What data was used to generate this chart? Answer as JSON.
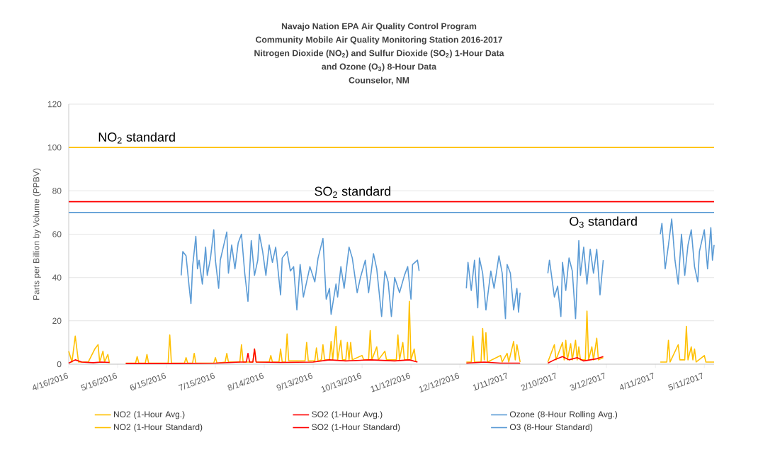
{
  "chart_data": {
    "type": "line",
    "title": "Navajo Nation EPA Air Quality Control Program",
    "subtitle": "Community Mobile Air Quality Monitoring Station  2016-2017",
    "ylabel": "Parts per Billion by Volume (PPBV)",
    "xlim": [
      "2016-04-16",
      "2017-05-17"
    ],
    "ylim": [
      0,
      120
    ],
    "xticks": [
      {
        "value": "2016-04-16",
        "label": "4/16/2016"
      },
      {
        "value": "2016-05-16",
        "label": "5/16/2016"
      },
      {
        "value": "2016-06-15",
        "label": "6/15/2016"
      },
      {
        "value": "2016-07-15",
        "label": "7/15/2016"
      },
      {
        "value": "2016-08-14",
        "label": "8/14/2016"
      },
      {
        "value": "2016-09-13",
        "label": "9/13/2016"
      },
      {
        "value": "2016-10-13",
        "label": "10/13/2016"
      },
      {
        "value": "2016-11-12",
        "label": "11/12/2016"
      },
      {
        "value": "2016-12-12",
        "label": "12/12/2016"
      },
      {
        "value": "2017-01-11",
        "label": "1/11/2017"
      },
      {
        "value": "2017-02-10",
        "label": "2/10/2017"
      },
      {
        "value": "2017-03-12",
        "label": "3/12/2017"
      },
      {
        "value": "2017-04-11",
        "label": "4/11/2017"
      },
      {
        "value": "2017-05-11",
        "label": "5/11/2017"
      }
    ],
    "yticks": [
      0,
      20,
      40,
      60,
      80,
      100,
      120
    ],
    "grid": "y",
    "legend": "bottom",
    "annotations": [
      "Nitrogen Dioxide (NO$_{2}$) and Sulfur Dioxide (SO$_{2}$) 1-Hour Data",
      "and Ozone (O$_{3}$) 8-Hour Data",
      "Counselor, NM",
      "NO$_{2}$ standard",
      "SO$_{2}$ standard",
      "O$_{3}$ standard"
    ],
    "series": [
      {
        "name": "NO2 (1-Hour Avg.)",
        "color": "#ffc000",
        "x": [
          "2016-04-16",
          "2016-04-18",
          "2016-04-20",
          "2016-04-22",
          "2016-04-28",
          "2016-05-02",
          "2016-05-04",
          "2016-05-05",
          "2016-05-07",
          "2016-05-08",
          "2016-05-10",
          "2016-05-11",
          "2016-05-16",
          "2016-05-21",
          "2016-05-27",
          "2016-05-28",
          "2016-05-29",
          "2016-06-02",
          "2016-06-03",
          "2016-06-04",
          "2016-06-16",
          "2016-06-17",
          "2016-06-18",
          "2016-06-26",
          "2016-06-27",
          "2016-06-28",
          "2016-07-01",
          "2016-07-02",
          "2016-07-03",
          "2016-07-14",
          "2016-07-15",
          "2016-07-16",
          "2016-07-21",
          "2016-07-22",
          "2016-07-23",
          "2016-07-30",
          "2016-07-31",
          "2016-08-01",
          "2016-08-07",
          "2016-08-08",
          "2016-08-09",
          "2016-08-17",
          "2016-08-18",
          "2016-08-19",
          "2016-08-23",
          "2016-08-24",
          "2016-08-25",
          "2016-08-27",
          "2016-08-28",
          "2016-08-29",
          "2016-09-08",
          "2016-09-09",
          "2016-09-10",
          "2016-09-14",
          "2016-09-15",
          "2016-09-16",
          "2016-09-18",
          "2016-09-19",
          "2016-09-20",
          "2016-09-23",
          "2016-09-24",
          "2016-09-25",
          "2016-09-27",
          "2016-09-28",
          "2016-09-30",
          "2016-10-01",
          "2016-10-03",
          "2016-10-04",
          "2016-10-05",
          "2016-10-06",
          "2016-10-07",
          "2016-10-13",
          "2016-10-14",
          "2016-10-17",
          "2016-10-18",
          "2016-10-19",
          "2016-10-22",
          "2016-10-23",
          "2016-10-27",
          "2016-10-28",
          "2016-11-03",
          "2016-11-04",
          "2016-11-05",
          "2016-11-07",
          "2016-11-08",
          "2016-11-10",
          "2016-11-11",
          "2016-11-12",
          "2016-11-14",
          "2016-11-15",
          "2016-12-02",
          "2016-12-16",
          "2016-12-19",
          "2016-12-20",
          "2016-12-21",
          "2016-12-25",
          "2016-12-26",
          "2016-12-27",
          "2016-12-28",
          "2016-12-29",
          "2017-01-06",
          "2017-01-07",
          "2017-01-10",
          "2017-01-11",
          "2017-01-14",
          "2017-01-15",
          "2017-01-16",
          "2017-01-18",
          "2017-01-26",
          "2017-02-04",
          "2017-02-08",
          "2017-02-09",
          "2017-02-13",
          "2017-02-14",
          "2017-02-15",
          "2017-02-16",
          "2017-02-18",
          "2017-02-19",
          "2017-02-21",
          "2017-02-22",
          "2017-02-23",
          "2017-02-24",
          "2017-02-27",
          "2017-02-28",
          "2017-03-01",
          "2017-03-03",
          "2017-03-04",
          "2017-03-06",
          "2017-03-07",
          "2017-03-10",
          "2017-03-22",
          "2017-04-14",
          "2017-04-18",
          "2017-04-19",
          "2017-04-20",
          "2017-04-25",
          "2017-04-26",
          "2017-04-29",
          "2017-04-30",
          "2017-05-01",
          "2017-05-03",
          "2017-05-04",
          "2017-05-05",
          "2017-05-06",
          "2017-05-11",
          "2017-05-12",
          "2017-05-17"
        ],
        "values": [
          6,
          1,
          13,
          1,
          1,
          7,
          9,
          1,
          6,
          1,
          4.5,
          0.5,
          null,
          0.5,
          0.5,
          3.5,
          0.5,
          0.5,
          4.5,
          0.5,
          0.5,
          13.5,
          0.5,
          0.5,
          3,
          0.5,
          0.5,
          5,
          0.5,
          0.5,
          3,
          0.5,
          1,
          5,
          1,
          1,
          9,
          1,
          1,
          7,
          1,
          1,
          4,
          1,
          1,
          7,
          1,
          1,
          14,
          1.5,
          1.5,
          10,
          1.5,
          1.5,
          7.5,
          1.5,
          2,
          9,
          2,
          2,
          10.5,
          2,
          17.5,
          2,
          11,
          2,
          2,
          10,
          2,
          10,
          2,
          4,
          2,
          2,
          15.5,
          2,
          8,
          2,
          6,
          2,
          2,
          13.5,
          2,
          10,
          2,
          2,
          29,
          2,
          7,
          1,
          null,
          1,
          1,
          13,
          1,
          1,
          16.5,
          2,
          14.5,
          1,
          4,
          1,
          5,
          1,
          10.5,
          2,
          9,
          1,
          null,
          1,
          9,
          2,
          10,
          2,
          11,
          2,
          9.5,
          2,
          11,
          2,
          8,
          2,
          2,
          24.5,
          2,
          8,
          2,
          12,
          2,
          3,
          null,
          1,
          1,
          11,
          1,
          9,
          2,
          2,
          17.5,
          2,
          8,
          2,
          7,
          1,
          4,
          1,
          1
        ]
      },
      {
        "name": "SO2 (1-Hour Avg.)",
        "color": "#ff0000",
        "x": [
          "2016-04-16",
          "2016-04-20",
          "2016-04-24",
          "2016-05-01",
          "2016-05-06",
          "2016-05-11",
          "2016-05-16",
          "2016-05-21",
          "2016-06-15",
          "2016-07-15",
          "2016-07-30",
          "2016-08-03",
          "2016-08-04",
          "2016-08-05",
          "2016-08-07",
          "2016-08-08",
          "2016-08-09",
          "2016-08-24",
          "2016-09-13",
          "2016-09-23",
          "2016-10-03",
          "2016-10-18",
          "2016-11-02",
          "2016-11-11",
          "2016-11-16",
          "2016-12-02",
          "2016-12-16",
          "2016-12-27",
          "2017-01-06",
          "2017-01-18",
          "2017-01-26",
          "2017-02-04",
          "2017-02-08",
          "2017-02-13",
          "2017-02-17",
          "2017-02-22",
          "2017-02-26",
          "2017-03-02",
          "2017-03-06",
          "2017-03-10"
        ],
        "values": [
          0.5,
          2,
          1,
          0.7,
          1,
          0.8,
          null,
          0.3,
          0.3,
          0.5,
          1,
          1,
          5,
          1,
          1,
          7,
          1,
          0.8,
          1,
          2,
          1.5,
          2,
          1.5,
          2,
          1,
          null,
          0.5,
          1,
          0.5,
          0.5,
          null,
          0.5,
          2,
          3.5,
          2,
          3,
          1.5,
          2,
          2.5,
          3.5
        ]
      },
      {
        "name": "Ozone (8-Hour Rolling Avg.)",
        "color": "#5b9bd5",
        "x": [
          "2016-06-24",
          "2016-06-25",
          "2016-06-27",
          "2016-06-29",
          "2016-06-30",
          "2016-07-01",
          "2016-07-03",
          "2016-07-04",
          "2016-07-05",
          "2016-07-07",
          "2016-07-09",
          "2016-07-10",
          "2016-07-12",
          "2016-07-14",
          "2016-07-15",
          "2016-07-17",
          "2016-07-18",
          "2016-07-22",
          "2016-07-23",
          "2016-07-25",
          "2016-07-27",
          "2016-07-29",
          "2016-07-31",
          "2016-08-02",
          "2016-08-04",
          "2016-08-06",
          "2016-08-08",
          "2016-08-10",
          "2016-08-11",
          "2016-08-13",
          "2016-08-15",
          "2016-08-17",
          "2016-08-19",
          "2016-08-21",
          "2016-08-24",
          "2016-08-25",
          "2016-08-28",
          "2016-08-30",
          "2016-09-01",
          "2016-09-03",
          "2016-09-05",
          "2016-09-07",
          "2016-09-09",
          "2016-09-11",
          "2016-09-14",
          "2016-09-16",
          "2016-09-19",
          "2016-09-21",
          "2016-09-23",
          "2016-09-24",
          "2016-09-27",
          "2016-09-28",
          "2016-09-30",
          "2016-10-02",
          "2016-10-05",
          "2016-10-07",
          "2016-10-10",
          "2016-10-12",
          "2016-10-15",
          "2016-10-17",
          "2016-10-20",
          "2016-10-22",
          "2016-10-25",
          "2016-10-27",
          "2016-10-29",
          "2016-10-31",
          "2016-11-02",
          "2016-11-05",
          "2016-11-08",
          "2016-11-10",
          "2016-11-12",
          "2016-11-13",
          "2016-11-16",
          "2016-11-17",
          "2016-12-02",
          "2016-12-16",
          "2016-12-17",
          "2016-12-19",
          "2016-12-21",
          "2016-12-23",
          "2016-12-24",
          "2016-12-26",
          "2016-12-28",
          "2016-12-31",
          "2017-01-02",
          "2017-01-05",
          "2017-01-07",
          "2017-01-09",
          "2017-01-10",
          "2017-01-12",
          "2017-01-14",
          "2017-01-16",
          "2017-01-17",
          "2017-01-18",
          "2017-01-26",
          "2017-02-04",
          "2017-02-05",
          "2017-02-08",
          "2017-02-10",
          "2017-02-12",
          "2017-02-13",
          "2017-02-15",
          "2017-02-17",
          "2017-02-19",
          "2017-02-21",
          "2017-02-23",
          "2017-02-24",
          "2017-02-26",
          "2017-02-28",
          "2017-03-02",
          "2017-03-04",
          "2017-03-06",
          "2017-03-08",
          "2017-03-10",
          "2017-03-25",
          "2017-04-14",
          "2017-04-15",
          "2017-04-17",
          "2017-04-19",
          "2017-04-21",
          "2017-04-23",
          "2017-04-25",
          "2017-04-27",
          "2017-04-29",
          "2017-05-01",
          "2017-05-03",
          "2017-05-05",
          "2017-05-07",
          "2017-05-08",
          "2017-05-11",
          "2017-05-13",
          "2017-05-15",
          "2017-05-16",
          "2017-05-17"
        ],
        "values": [
          41,
          52,
          50,
          35,
          28,
          45,
          59,
          44,
          48,
          37,
          54,
          41,
          49,
          62,
          48,
          35,
          48,
          61,
          42,
          55,
          44,
          56,
          60,
          42,
          29,
          57,
          41,
          48,
          60,
          52,
          41,
          55,
          47,
          54,
          32,
          49,
          52,
          43,
          45,
          25,
          46,
          31,
          38,
          45,
          38,
          49,
          58,
          30,
          35,
          23,
          37,
          31,
          45,
          35,
          54,
          49,
          33,
          40,
          48,
          33,
          51,
          44,
          22,
          43,
          38,
          22,
          40,
          33,
          41,
          45,
          30,
          46,
          48,
          43,
          null,
          35,
          47,
          34,
          48,
          26,
          49,
          42,
          25,
          43,
          35,
          50,
          42,
          21,
          46,
          42,
          25,
          35,
          24,
          33,
          null,
          42,
          48,
          31,
          36,
          22,
          47,
          34,
          49,
          43,
          21,
          57,
          41,
          54,
          37,
          53,
          42,
          53,
          32,
          48,
          null,
          60,
          65,
          44,
          55,
          67,
          48,
          37,
          60,
          41,
          55,
          62,
          45,
          38,
          52,
          62,
          44,
          63,
          48,
          55
        ]
      },
      {
        "name": "NO2 (1-Hour Standard)",
        "color": "#ffc000",
        "x": [
          "2016-04-16",
          "2017-05-17"
        ],
        "values": [
          100,
          100
        ]
      },
      {
        "name": "SO2 (1-Hour Standard)",
        "color": "#ff0000",
        "x": [
          "2016-04-16",
          "2017-05-17"
        ],
        "values": [
          75,
          75
        ]
      },
      {
        "name": "O3 (8-Hour Standard)",
        "color": "#5b9bd5",
        "x": [
          "2016-04-16",
          "2017-05-17"
        ],
        "values": [
          70,
          70
        ]
      }
    ]
  }
}
